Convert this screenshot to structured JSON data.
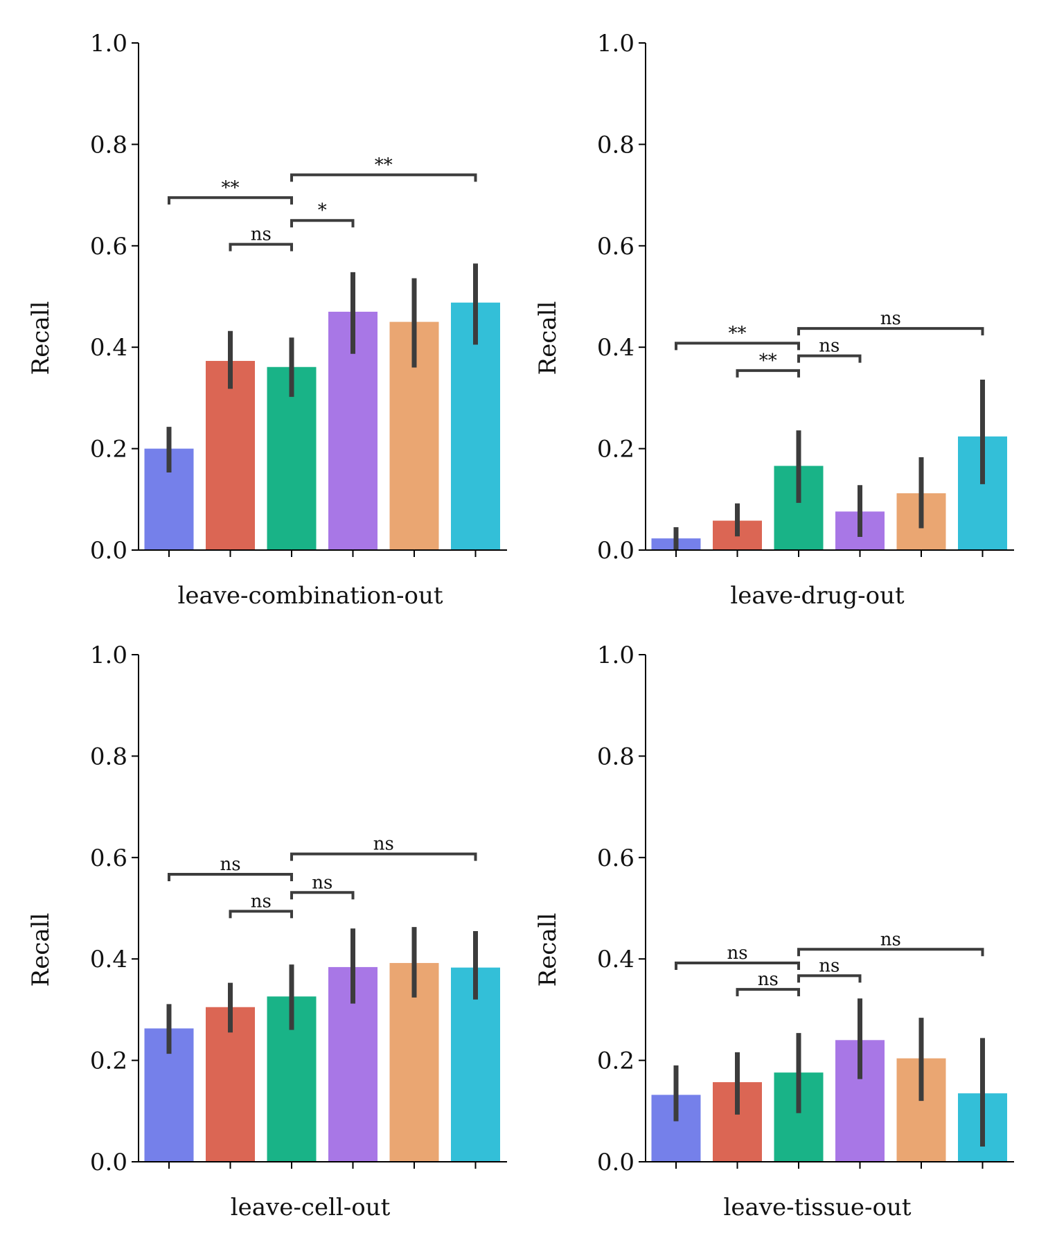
{
  "chart_data": [
    {
      "type": "bar",
      "xlabel": "leave-combination-out",
      "ylabel": "Recall",
      "ylim": [
        0,
        1.0
      ],
      "yticks": [
        "0.0",
        "0.2",
        "0.4",
        "0.6",
        "0.8",
        "1.0"
      ],
      "categories": [
        "",
        "",
        "",
        "",
        "",
        ""
      ],
      "values": [
        0.2,
        0.373,
        0.361,
        0.47,
        0.45,
        0.488
      ],
      "errors": [
        [
          0.153,
          0.243
        ],
        [
          0.318,
          0.432
        ],
        [
          0.302,
          0.419
        ],
        [
          0.387,
          0.548
        ],
        [
          0.36,
          0.536
        ],
        [
          0.405,
          0.565
        ]
      ],
      "significance": [
        {
          "from": 0,
          "to": 2,
          "y": 0.695,
          "label": "**"
        },
        {
          "from": 1,
          "to": 2,
          "y": 0.603,
          "label": "ns"
        },
        {
          "from": 2,
          "to": 3,
          "y": 0.65,
          "label": "*"
        },
        {
          "from": 2,
          "to": 5,
          "y": 0.74,
          "label": "**"
        }
      ]
    },
    {
      "type": "bar",
      "xlabel": "leave-drug-out",
      "ylabel": "Recall",
      "ylim": [
        0,
        1.0
      ],
      "yticks": [
        "0.0",
        "0.2",
        "0.4",
        "0.6",
        "0.8",
        "1.0"
      ],
      "categories": [
        "",
        "",
        "",
        "",
        "",
        ""
      ],
      "values": [
        0.023,
        0.058,
        0.166,
        0.076,
        0.112,
        0.224
      ],
      "errors": [
        [
          0.0,
          0.045
        ],
        [
          0.027,
          0.092
        ],
        [
          0.093,
          0.236
        ],
        [
          0.026,
          0.128
        ],
        [
          0.043,
          0.183
        ],
        [
          0.13,
          0.336
        ]
      ],
      "significance": [
        {
          "from": 0,
          "to": 2,
          "y": 0.408,
          "label": "**"
        },
        {
          "from": 1,
          "to": 2,
          "y": 0.354,
          "label": "**"
        },
        {
          "from": 2,
          "to": 3,
          "y": 0.383,
          "label": "ns"
        },
        {
          "from": 2,
          "to": 5,
          "y": 0.437,
          "label": "ns"
        }
      ]
    },
    {
      "type": "bar",
      "xlabel": "leave-cell-out",
      "ylabel": "Recall",
      "ylim": [
        0,
        1.0
      ],
      "yticks": [
        "0.0",
        "0.2",
        "0.4",
        "0.6",
        "0.8",
        "1.0"
      ],
      "categories": [
        "",
        "",
        "",
        "",
        "",
        ""
      ],
      "values": [
        0.263,
        0.305,
        0.326,
        0.384,
        0.392,
        0.383
      ],
      "errors": [
        [
          0.213,
          0.311
        ],
        [
          0.255,
          0.353
        ],
        [
          0.26,
          0.389
        ],
        [
          0.312,
          0.46
        ],
        [
          0.324,
          0.463
        ],
        [
          0.32,
          0.455
        ]
      ],
      "significance": [
        {
          "from": 0,
          "to": 2,
          "y": 0.567,
          "label": "ns"
        },
        {
          "from": 1,
          "to": 2,
          "y": 0.494,
          "label": "ns"
        },
        {
          "from": 2,
          "to": 3,
          "y": 0.531,
          "label": "ns"
        },
        {
          "from": 2,
          "to": 5,
          "y": 0.607,
          "label": "ns"
        }
      ]
    },
    {
      "type": "bar",
      "xlabel": "leave-tissue-out",
      "ylabel": "Recall",
      "ylim": [
        0,
        1.0
      ],
      "yticks": [
        "0.0",
        "0.2",
        "0.4",
        "0.6",
        "0.8",
        "1.0"
      ],
      "categories": [
        "",
        "",
        "",
        "",
        "",
        ""
      ],
      "values": [
        0.132,
        0.157,
        0.176,
        0.24,
        0.204,
        0.135
      ],
      "errors": [
        [
          0.08,
          0.19
        ],
        [
          0.093,
          0.216
        ],
        [
          0.096,
          0.254
        ],
        [
          0.163,
          0.322
        ],
        [
          0.12,
          0.284
        ],
        [
          0.03,
          0.244
        ]
      ],
      "significance": [
        {
          "from": 0,
          "to": 2,
          "y": 0.392,
          "label": "ns"
        },
        {
          "from": 1,
          "to": 2,
          "y": 0.34,
          "label": "ns"
        },
        {
          "from": 2,
          "to": 3,
          "y": 0.367,
          "label": "ns"
        },
        {
          "from": 2,
          "to": 5,
          "y": 0.419,
          "label": "ns"
        }
      ]
    }
  ],
  "colors": [
    "#7580ea",
    "#db6654",
    "#19b387",
    "#a877e6",
    "#eaa672",
    "#33bfd8"
  ],
  "error_color": "#3c3c3c"
}
